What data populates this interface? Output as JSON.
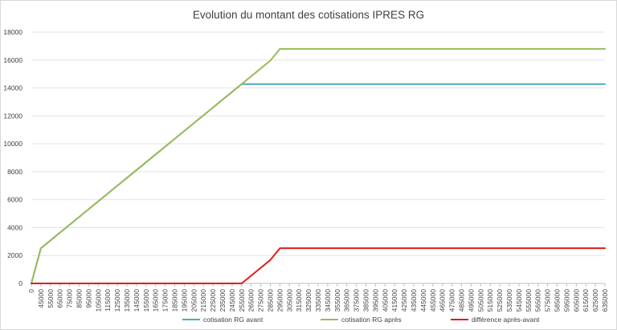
{
  "chart_data": {
    "type": "line",
    "title": "Evolution du montant des cotisations  IPRES RG",
    "xlabel": "",
    "ylabel": "",
    "ylim": [
      0,
      18000
    ],
    "yticks": [
      0,
      2000,
      4000,
      6000,
      8000,
      10000,
      12000,
      14000,
      16000,
      18000
    ],
    "x": [
      0,
      45000,
      55000,
      65000,
      75000,
      85000,
      95000,
      105000,
      115000,
      125000,
      135000,
      145000,
      155000,
      165000,
      175000,
      185000,
      195000,
      205000,
      215000,
      225000,
      235000,
      245000,
      255000,
      265000,
      275000,
      285000,
      295000,
      305000,
      315000,
      325000,
      335000,
      345000,
      355000,
      365000,
      375000,
      385000,
      395000,
      405000,
      415000,
      425000,
      435000,
      445000,
      455000,
      465000,
      475000,
      485000,
      495000,
      505000,
      515000,
      525000,
      535000,
      545000,
      555000,
      565000,
      575000,
      585000,
      595000,
      605000,
      615000,
      625000,
      635000
    ],
    "series": [
      {
        "name": "cotisation RG avant",
        "color": "#4bacc6",
        "values": [
          0,
          2520,
          3080,
          3640,
          4200,
          4760,
          5320,
          5880,
          6440,
          7000,
          7560,
          8120,
          8680,
          9240,
          9800,
          10360,
          10920,
          11480,
          12040,
          12600,
          13160,
          13720,
          14280,
          14280,
          14280,
          14280,
          14280,
          14280,
          14280,
          14280,
          14280,
          14280,
          14280,
          14280,
          14280,
          14280,
          14280,
          14280,
          14280,
          14280,
          14280,
          14280,
          14280,
          14280,
          14280,
          14280,
          14280,
          14280,
          14280,
          14280,
          14280,
          14280,
          14280,
          14280,
          14280,
          14280,
          14280,
          14280,
          14280,
          14280,
          14280
        ]
      },
      {
        "name": "cotisation RG après",
        "color": "#9bbb59",
        "values": [
          0,
          2520,
          3080,
          3640,
          4200,
          4760,
          5320,
          5880,
          6440,
          7000,
          7560,
          8120,
          8680,
          9240,
          9800,
          10360,
          10920,
          11480,
          12040,
          12600,
          13160,
          13720,
          14280,
          14840,
          15400,
          15960,
          16800,
          16800,
          16800,
          16800,
          16800,
          16800,
          16800,
          16800,
          16800,
          16800,
          16800,
          16800,
          16800,
          16800,
          16800,
          16800,
          16800,
          16800,
          16800,
          16800,
          16800,
          16800,
          16800,
          16800,
          16800,
          16800,
          16800,
          16800,
          16800,
          16800,
          16800,
          16800,
          16800,
          16800,
          16800
        ]
      },
      {
        "name": "différence après-avant",
        "color": "#e41a1a",
        "values": [
          0,
          0,
          0,
          0,
          0,
          0,
          0,
          0,
          0,
          0,
          0,
          0,
          0,
          0,
          0,
          0,
          0,
          0,
          0,
          0,
          0,
          0,
          0,
          560,
          1120,
          1680,
          2520,
          2520,
          2520,
          2520,
          2520,
          2520,
          2520,
          2520,
          2520,
          2520,
          2520,
          2520,
          2520,
          2520,
          2520,
          2520,
          2520,
          2520,
          2520,
          2520,
          2520,
          2520,
          2520,
          2520,
          2520,
          2520,
          2520,
          2520,
          2520,
          2520,
          2520,
          2520,
          2520,
          2520,
          2520
        ]
      }
    ],
    "grid": "horizontal",
    "legend": "bottom"
  }
}
